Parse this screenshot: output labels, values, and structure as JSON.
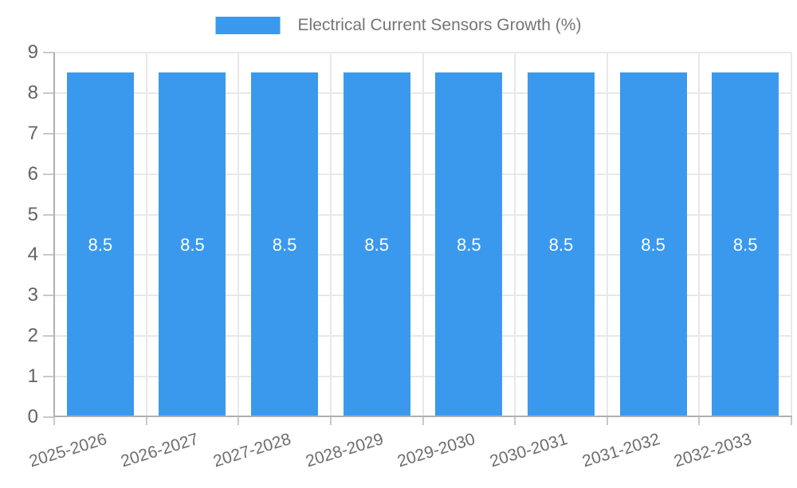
{
  "chart_data": {
    "type": "bar",
    "title": "Electrical Current Sensors Growth (%)",
    "categories": [
      "2025-2026",
      "2026-2027",
      "2027-2028",
      "2028-2029",
      "2029-2030",
      "2030-2031",
      "2031-2032",
      "2032-2033"
    ],
    "values": [
      8.5,
      8.5,
      8.5,
      8.5,
      8.5,
      8.5,
      8.5,
      8.5
    ],
    "value_labels": [
      "8.5",
      "8.5",
      "8.5",
      "8.5",
      "8.5",
      "8.5",
      "8.5",
      "8.5"
    ],
    "xlabel": "",
    "ylabel": "",
    "ylim": [
      0,
      9
    ],
    "yticks": [
      0,
      1,
      2,
      3,
      4,
      5,
      6,
      7,
      8,
      9
    ],
    "grid": true,
    "legend_position": "top-center",
    "bar_color": "#3b99ed",
    "value_label_color": "#ffffff",
    "axis_color": "#b0b0b0",
    "gridline_color": "#e8e8e8",
    "tick_color": "#c9c9c9",
    "ylabel_color": "#636363",
    "xlabel_color": "#6e6e6e",
    "legend_text_color": "#757575",
    "background_color": "#ffffff"
  }
}
